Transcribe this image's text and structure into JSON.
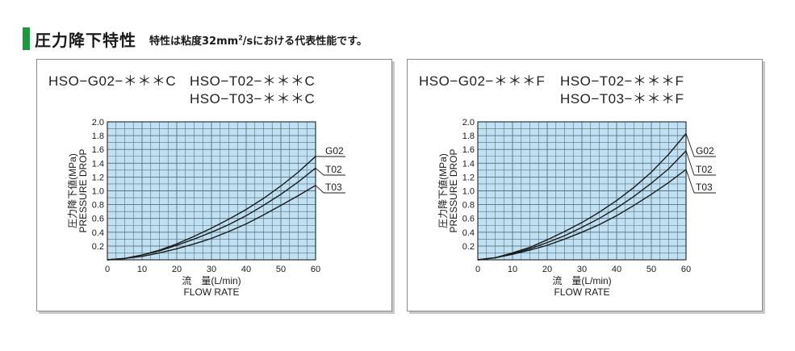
{
  "header": {
    "title": "圧力降下特性",
    "note_main": "特性は粘度32mm",
    "note_sup": "2",
    "note_tail": "/sにおける代表性能です。"
  },
  "chart_data": [
    {
      "type": "line",
      "models": {
        "line1_a": "HSO−G02−＊＊＊C",
        "line1_b": "HSO−T02−＊＊＊C",
        "line2": "HSO−T03−＊＊＊C"
      },
      "xlabel_jp": "流　量(L/min)",
      "xlabel_en": "FLOW RATE",
      "ylabel_jp": "圧力降下値(MPa)",
      "ylabel_en": "PRESSURE DROP",
      "xlim": [
        0,
        60
      ],
      "ylim": [
        0,
        2.0
      ],
      "x_ticks": [
        0,
        10,
        20,
        30,
        40,
        50,
        60
      ],
      "y_ticks": [
        0.2,
        0.4,
        0.6,
        0.8,
        1.0,
        1.2,
        1.4,
        1.6,
        1.8,
        2.0
      ],
      "y_tick_labels": [
        "0.2",
        "0.4",
        "0.6",
        "0.8",
        "1.0",
        "1.2",
        "1.4",
        "1.6",
        "1.8",
        "2.0"
      ],
      "x_tick_labels": [
        "0",
        "10",
        "20",
        "30",
        "40",
        "50",
        "60"
      ],
      "grid": true,
      "background_color": "#bfe1f3",
      "series": [
        {
          "name": "G02",
          "x": [
            0,
            5,
            10,
            15,
            20,
            25,
            30,
            35,
            40,
            45,
            50,
            55,
            60
          ],
          "y": [
            0,
            0.02,
            0.07,
            0.14,
            0.23,
            0.34,
            0.46,
            0.59,
            0.73,
            0.89,
            1.07,
            1.27,
            1.5
          ]
        },
        {
          "name": "T02",
          "x": [
            0,
            5,
            10,
            15,
            20,
            25,
            30,
            35,
            40,
            45,
            50,
            55,
            60
          ],
          "y": [
            0,
            0.02,
            0.07,
            0.13,
            0.21,
            0.3,
            0.4,
            0.51,
            0.64,
            0.79,
            0.95,
            1.13,
            1.33
          ]
        },
        {
          "name": "T03",
          "x": [
            0,
            5,
            10,
            15,
            20,
            25,
            30,
            35,
            40,
            45,
            50,
            55,
            60
          ],
          "y": [
            0,
            0.02,
            0.05,
            0.1,
            0.16,
            0.23,
            0.31,
            0.41,
            0.52,
            0.65,
            0.79,
            0.93,
            1.08
          ]
        }
      ]
    },
    {
      "type": "line",
      "models": {
        "line1_a": "HSO−G02−＊＊＊F",
        "line1_b": "HSO−T02−＊＊＊F",
        "line2": "HSO−T03−＊＊＊F"
      },
      "xlabel_jp": "流　量(L/min)",
      "xlabel_en": "FLOW RATE",
      "ylabel_jp": "圧力降下値(MPa)",
      "ylabel_en": "PRESSURE DROP",
      "xlim": [
        0,
        60
      ],
      "ylim": [
        0,
        2.0
      ],
      "x_ticks": [
        0,
        10,
        20,
        30,
        40,
        50,
        60
      ],
      "y_ticks": [
        0.2,
        0.4,
        0.6,
        0.8,
        1.0,
        1.2,
        1.4,
        1.6,
        1.8,
        2.0
      ],
      "y_tick_labels": [
        "0.2",
        "0.4",
        "0.6",
        "0.8",
        "1.0",
        "1.2",
        "1.4",
        "1.6",
        "1.8",
        "2.0"
      ],
      "x_tick_labels": [
        "0",
        "10",
        "20",
        "30",
        "40",
        "50",
        "60"
      ],
      "grid": true,
      "background_color": "#bfe1f3",
      "series": [
        {
          "name": "G02",
          "x": [
            0,
            5,
            10,
            15,
            20,
            25,
            30,
            35,
            40,
            45,
            50,
            55,
            60
          ],
          "y": [
            0,
            0.03,
            0.1,
            0.18,
            0.29,
            0.41,
            0.54,
            0.69,
            0.86,
            1.05,
            1.27,
            1.53,
            1.83
          ]
        },
        {
          "name": "T02",
          "x": [
            0,
            5,
            10,
            15,
            20,
            25,
            30,
            35,
            40,
            45,
            50,
            55,
            60
          ],
          "y": [
            0,
            0.03,
            0.09,
            0.16,
            0.25,
            0.35,
            0.47,
            0.6,
            0.75,
            0.92,
            1.11,
            1.32,
            1.58
          ]
        },
        {
          "name": "T03",
          "x": [
            0,
            5,
            10,
            15,
            20,
            25,
            30,
            35,
            40,
            45,
            50,
            55,
            60
          ],
          "y": [
            0,
            0.03,
            0.08,
            0.14,
            0.21,
            0.3,
            0.4,
            0.51,
            0.64,
            0.79,
            0.95,
            1.12,
            1.31
          ]
        }
      ]
    }
  ]
}
